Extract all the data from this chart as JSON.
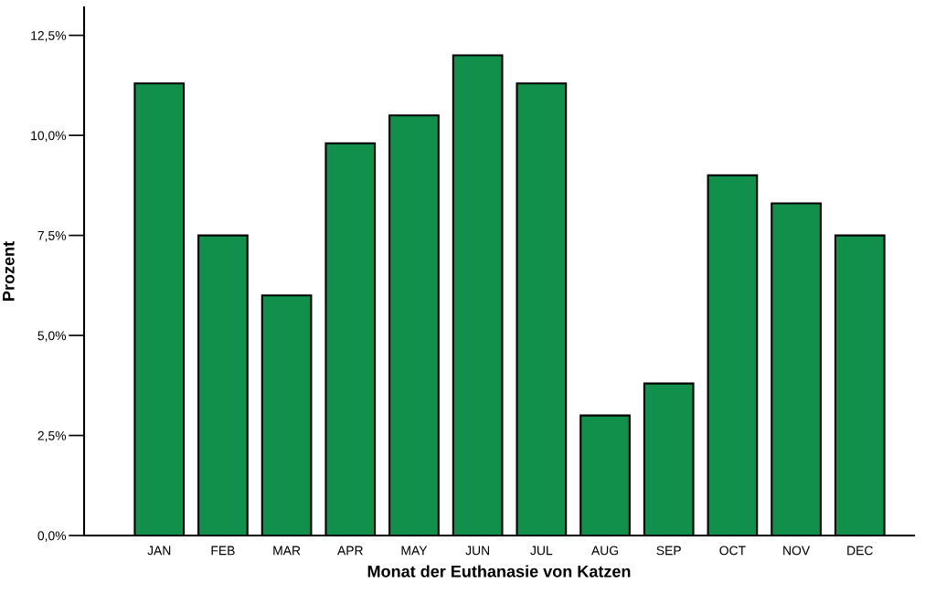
{
  "chart_data": {
    "type": "bar",
    "xlabel": "Monat der Euthanasie von Katzen",
    "ylabel": "Prozent",
    "categories": [
      "JAN",
      "FEB",
      "MAR",
      "APR",
      "MAY",
      "JUN",
      "JUL",
      "AUG",
      "SEP",
      "OCT",
      "NOV",
      "DEC"
    ],
    "values": [
      11.3,
      7.5,
      6.0,
      9.8,
      10.5,
      12.0,
      11.3,
      3.0,
      3.8,
      9.0,
      8.3,
      7.5
    ],
    "color": "#10904a",
    "ylim": [
      0,
      13.2
    ],
    "yticks": [
      {
        "value": 0,
        "label": "0,0%"
      },
      {
        "value": 2.5,
        "label": "2,5%"
      },
      {
        "value": 5,
        "label": "5,0%"
      },
      {
        "value": 7.5,
        "label": "7,5%"
      },
      {
        "value": 10,
        "label": "10,0%"
      },
      {
        "value": 12.5,
        "label": "12,5%"
      }
    ],
    "grid": false
  }
}
